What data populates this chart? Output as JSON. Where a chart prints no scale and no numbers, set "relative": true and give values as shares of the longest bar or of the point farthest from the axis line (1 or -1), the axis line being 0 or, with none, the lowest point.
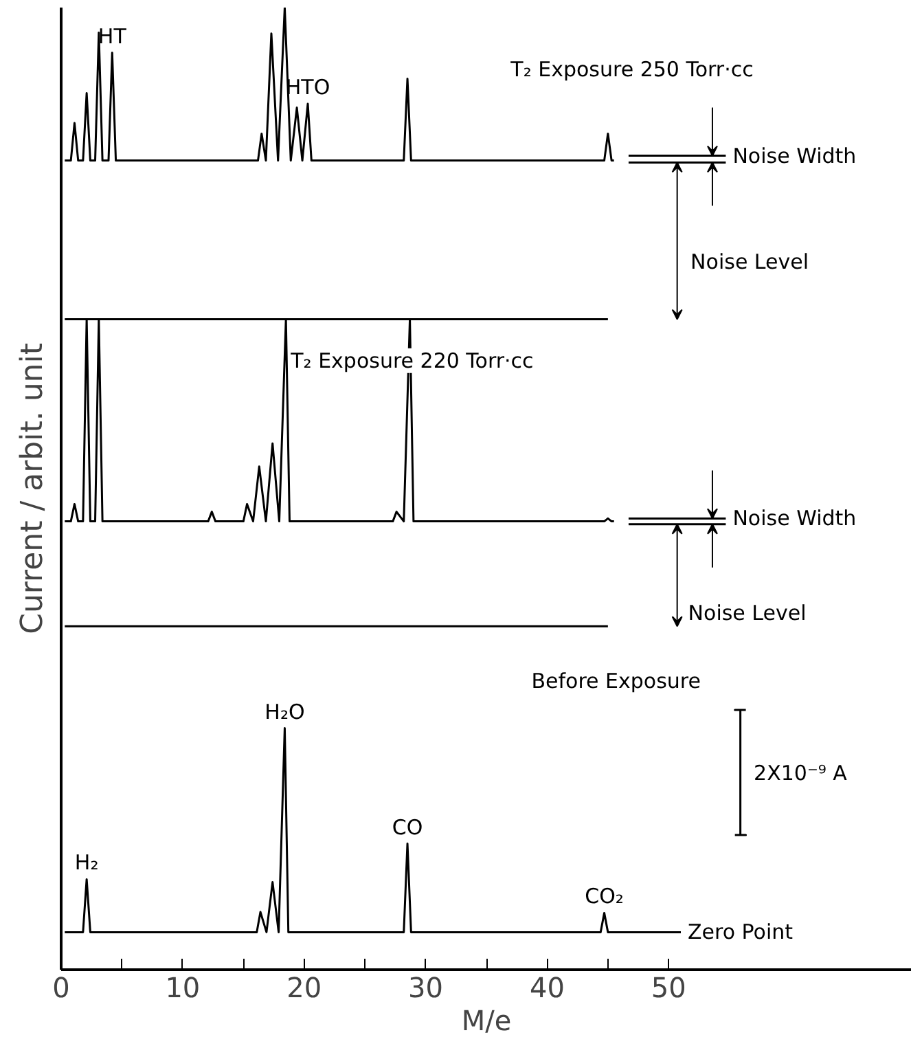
{
  "chart_data": {
    "type": "line",
    "relative": true,
    "xlabel": "M/e",
    "ylabel": "Current / arbit. unit",
    "xlim": [
      0,
      70
    ],
    "xticks": [
      0,
      {
        "value": 5,
        "label": null
      },
      10,
      {
        "value": 15,
        "label": null
      },
      20,
      {
        "value": 25,
        "label": null
      },
      30,
      {
        "value": 35,
        "label": null
      },
      40,
      {
        "value": 45,
        "label": null
      },
      50
    ],
    "grid": false,
    "series": [
      {
        "color": "#000000",
        "x": [
          0.3,
          0.8,
          1.1,
          1.4,
          1.8,
          2.1,
          2.4,
          2.8,
          3.1,
          3.4,
          3.9,
          4.2,
          4.5,
          16.2,
          16.5,
          16.85,
          17.3,
          17.85,
          18.4,
          18.9,
          19.4,
          19.85,
          20.3,
          20.6,
          28.2,
          28.5,
          28.8,
          44.7,
          45.0,
          45.3,
          45.5
        ],
        "values": [
          0.841,
          0.841,
          0.88,
          0.841,
          0.841,
          0.911,
          0.841,
          0.841,
          0.974,
          0.841,
          0.841,
          0.953,
          0.841,
          0.841,
          0.869,
          0.841,
          0.973,
          0.841,
          1.0,
          0.841,
          0.896,
          0.841,
          0.9,
          0.841,
          0.841,
          0.926,
          0.841,
          0.841,
          0.869,
          0.841,
          0.841
        ]
      },
      {
        "color": "#000000",
        "x": [
          0.3,
          0.8,
          1.1,
          1.4,
          1.8,
          2.1,
          2.4,
          2.8,
          3.1,
          3.4,
          12.1,
          12.4,
          12.7,
          15.0,
          15.3,
          15.8,
          16.3,
          16.85,
          17.4,
          17.95,
          18.5,
          18.8,
          27.3,
          27.6,
          28.2,
          28.7,
          29.0,
          44.7,
          45.0,
          45.3,
          45.5
        ],
        "values": [
          0.466,
          0.466,
          0.484,
          0.466,
          0.466,
          0.676,
          0.466,
          0.466,
          0.676,
          0.466,
          0.466,
          0.476,
          0.466,
          0.466,
          0.484,
          0.466,
          0.523,
          0.466,
          0.547,
          0.466,
          0.676,
          0.466,
          0.466,
          0.476,
          0.466,
          0.676,
          0.466,
          0.466,
          0.469,
          0.466,
          0.466
        ]
      },
      {
        "color": "#000000",
        "x": [
          0.3,
          1.8,
          2.1,
          2.4,
          16.1,
          16.4,
          16.9,
          17.4,
          17.9,
          18.4,
          18.7,
          28.2,
          28.5,
          28.8,
          44.4,
          44.7,
          45.0,
          51.0
        ],
        "values": [
          0.039,
          0.039,
          0.094,
          0.039,
          0.039,
          0.06,
          0.039,
          0.091,
          0.039,
          0.251,
          0.039,
          0.039,
          0.131,
          0.039,
          0.039,
          0.059,
          0.039,
          0.039
        ]
      },
      {
        "color": "#000000",
        "x": [
          0.3,
          45.0
        ],
        "values": [
          0.676,
          0.676
        ]
      },
      {
        "color": "#000000",
        "x": [
          0.3,
          45.0
        ],
        "values": [
          0.357,
          0.357
        ]
      },
      {
        "color": "#000000",
        "x": [
          46.7,
          54.7
        ],
        "values": [
          0.846,
          0.846
        ]
      },
      {
        "color": "#000000",
        "x": [
          46.7,
          54.7
        ],
        "values": [
          0.839,
          0.839
        ]
      },
      {
        "color": "#000000",
        "x": [
          46.7,
          54.7
        ],
        "values": [
          0.469,
          0.469
        ]
      },
      {
        "color": "#000000",
        "x": [
          46.7,
          54.7
        ],
        "values": [
          0.463,
          0.463
        ]
      },
      {
        "color": "#000000",
        "x": [
          55.45,
          56.35,
          55.9,
          55.9,
          55.45,
          56.35
        ],
        "values": [
          0.14,
          0.14,
          0.14,
          0.27,
          0.27,
          0.27
        ]
      }
    ],
    "annotations": [
      "T₂ Exposure 250 Torr·cc",
      "T₂ Exposure 220 Torr·cc",
      "Before Exposure",
      "Noise Level",
      "Noise Level",
      "2X10⁻⁹ A",
      {
        "text": "HT",
        "x": 4.2,
        "y": 0.953
      },
      {
        "text": "HTO",
        "x": 20.3,
        "y": 0.9
      },
      {
        "text": "H₂",
        "x": 2.1,
        "y": 0.094
      },
      {
        "text": "H₂O",
        "x": 18.4,
        "y": 0.251
      },
      {
        "text": "CO",
        "x": 28.5,
        "y": 0.131
      },
      {
        "text": "CO₂",
        "x": 44.7,
        "y": 0.059
      },
      {
        "text": "Zero Point",
        "x": 51.0,
        "y": 0.039
      },
      {
        "text": "Noise Width",
        "x": 54.7,
        "y": 0.846
      },
      {
        "text": "Noise Width",
        "x": 54.7,
        "y": 0.469
      }
    ]
  }
}
